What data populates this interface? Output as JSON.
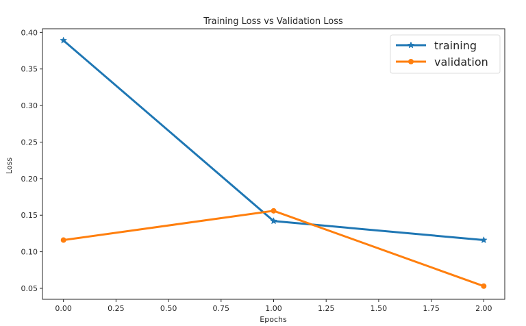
{
  "chart_data": {
    "type": "line",
    "title": "Training Loss vs Validation Loss",
    "xlabel": "Epochs",
    "ylabel": "Loss",
    "x": [
      0,
      1,
      2
    ],
    "xlim": [
      -0.1,
      2.1
    ],
    "ylim": [
      0.035,
      0.405
    ],
    "xticks": [
      0.0,
      0.25,
      0.5,
      0.75,
      1.0,
      1.25,
      1.5,
      1.75,
      2.0
    ],
    "xtick_labels": [
      "0.00",
      "0.25",
      "0.50",
      "0.75",
      "1.00",
      "1.25",
      "1.50",
      "1.75",
      "2.00"
    ],
    "yticks": [
      0.05,
      0.1,
      0.15,
      0.2,
      0.25,
      0.3,
      0.35,
      0.4
    ],
    "ytick_labels": [
      "0.05",
      "0.10",
      "0.15",
      "0.20",
      "0.25",
      "0.30",
      "0.35",
      "0.40"
    ],
    "grid": false,
    "legend_position": "top-right",
    "series": [
      {
        "name": "training",
        "values": [
          0.389,
          0.142,
          0.116
        ],
        "color": "#1f77b4",
        "marker": "star"
      },
      {
        "name": "validation",
        "values": [
          0.116,
          0.156,
          0.053
        ],
        "color": "#ff7f0e",
        "marker": "circle"
      }
    ]
  }
}
